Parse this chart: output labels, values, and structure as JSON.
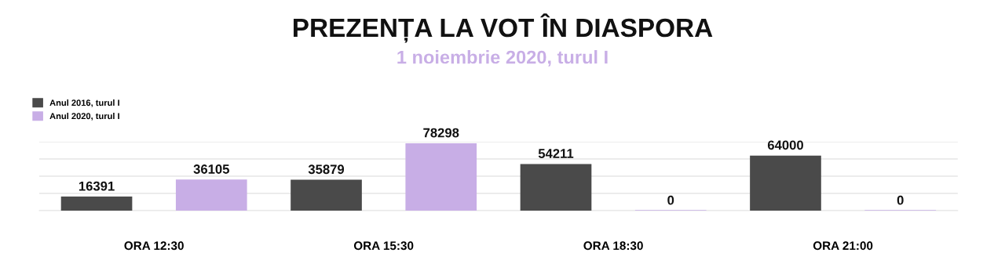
{
  "chart_data": {
    "type": "bar",
    "title": "PREZENȚA LA VOT ÎN DIASPORA",
    "subtitle": "1 noiembrie 2020, turul I",
    "categories": [
      "ORA 12:30",
      "ORA 15:30",
      "ORA 18:30",
      "ORA 21:00"
    ],
    "series": [
      {
        "name": "Anul 2016, turul I",
        "color": "#4a4a4a",
        "values": [
          16391,
          35879,
          54211,
          64000
        ]
      },
      {
        "name": "Anul 2020, turul I",
        "color": "#c8aee6",
        "values": [
          36105,
          78298,
          0,
          0
        ]
      }
    ],
    "ylim": [
      0,
      80000
    ],
    "yticks": [
      {
        "value": 0,
        "label": null
      },
      {
        "value": 20000,
        "label": null
      },
      {
        "value": 40000,
        "label": null
      },
      {
        "value": 60000,
        "label": null
      },
      {
        "value": 80000,
        "label": null
      }
    ],
    "tick_labels": "x",
    "grid": "y",
    "legend": "top left",
    "data_labels": true
  }
}
